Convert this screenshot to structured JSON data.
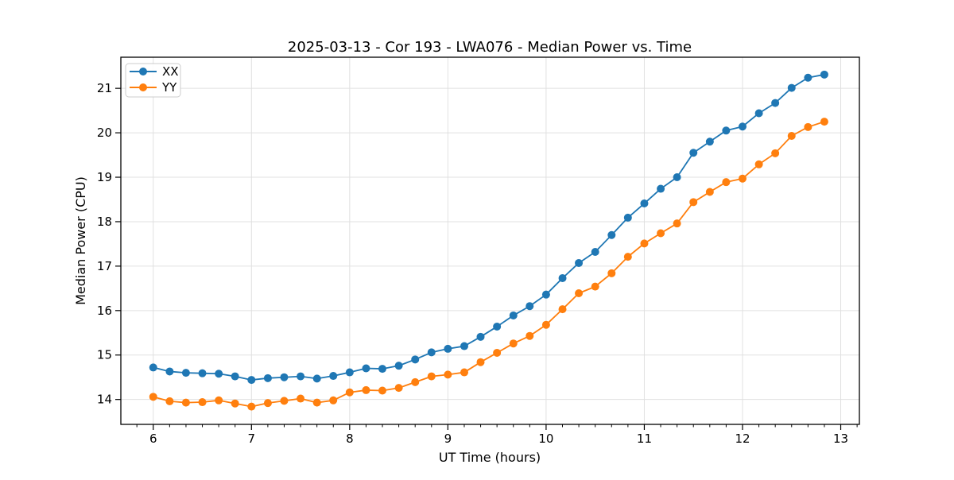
{
  "figure": {
    "background": "#ffffff",
    "plot_background": "#ffffff",
    "spine_color": "#000000"
  },
  "chart_data": {
    "type": "line",
    "title": "2025-03-13 - Cor 193 - LWA076 - Median Power vs. Time",
    "xlabel": "UT Time (hours)",
    "ylabel": "Median Power (CPU)",
    "xlim": [
      5.67,
      13.19
    ],
    "ylim": [
      13.44,
      21.7
    ],
    "x_ticks": [
      6,
      7,
      8,
      9,
      10,
      11,
      12,
      13
    ],
    "y_ticks": [
      14,
      15,
      16,
      17,
      18,
      19,
      20,
      21
    ],
    "x_minor_step": 0.1666667,
    "grid": true,
    "grid_color": "#e0e0e0",
    "legend": {
      "position": "upper left",
      "labels": [
        "XX",
        "YY"
      ]
    },
    "x": [
      6.0,
      6.167,
      6.333,
      6.5,
      6.667,
      6.833,
      7.0,
      7.167,
      7.333,
      7.5,
      7.667,
      7.833,
      8.0,
      8.167,
      8.333,
      8.5,
      8.667,
      8.833,
      9.0,
      9.167,
      9.333,
      9.5,
      9.667,
      9.833,
      10.0,
      10.167,
      10.333,
      10.5,
      10.667,
      10.833,
      11.0,
      11.167,
      11.333,
      11.5,
      11.667,
      11.833,
      12.0,
      12.167,
      12.333,
      12.5,
      12.667,
      12.833
    ],
    "series": [
      {
        "name": "XX",
        "color": "#1f77b4",
        "marker": "circle",
        "values": [
          14.72,
          14.63,
          14.6,
          14.59,
          14.58,
          14.52,
          14.44,
          14.48,
          14.5,
          14.52,
          14.47,
          14.53,
          14.61,
          14.7,
          14.69,
          14.76,
          14.9,
          15.06,
          15.14,
          15.2,
          15.41,
          15.64,
          15.89,
          16.1,
          16.36,
          16.73,
          17.07,
          17.32,
          17.7,
          18.09,
          18.41,
          18.74,
          19.0,
          19.55,
          19.8,
          20.05,
          20.14,
          20.44,
          20.67,
          21.01,
          21.24,
          21.31
        ]
      },
      {
        "name": "YY",
        "color": "#ff7f0e",
        "marker": "circle",
        "values": [
          14.06,
          13.96,
          13.93,
          13.94,
          13.98,
          13.91,
          13.84,
          13.92,
          13.97,
          14.02,
          13.93,
          13.98,
          14.16,
          14.21,
          14.2,
          14.26,
          14.39,
          14.52,
          14.56,
          14.61,
          14.84,
          15.05,
          15.26,
          15.43,
          15.68,
          16.03,
          16.39,
          16.54,
          16.84,
          17.21,
          17.51,
          17.74,
          17.96,
          18.44,
          18.67,
          18.89,
          18.97,
          19.29,
          19.54,
          19.93,
          20.13,
          20.25
        ]
      }
    ]
  }
}
